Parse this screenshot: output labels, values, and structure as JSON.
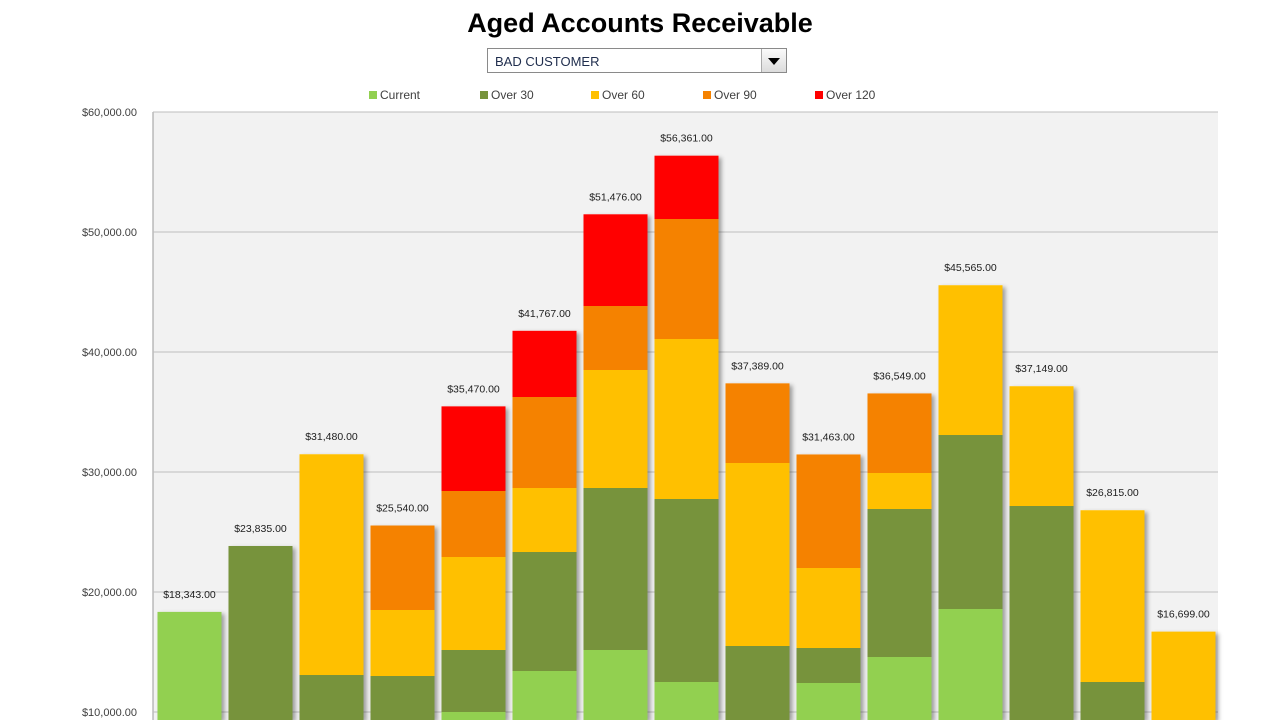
{
  "title": "Aged Accounts Receivable",
  "customer_select": {
    "value": "BAD CUSTOMER"
  },
  "chart_data": {
    "type": "bar",
    "stacked": true,
    "title": "Aged Accounts Receivable",
    "xlabel": "",
    "ylabel": "",
    "ylim": [
      0,
      60000
    ],
    "yticks": [
      "$10,000.00",
      "$20,000.00",
      "$30,000.00",
      "$40,000.00",
      "$50,000.00",
      "$60,000.00"
    ],
    "ytick_values": [
      10000,
      20000,
      30000,
      40000,
      50000,
      60000
    ],
    "grid": true,
    "legend_position": "top",
    "colors": {
      "Current": "#92d050",
      "Over 30": "#77933c",
      "Over 60": "#ffc000",
      "Over 90": "#f58200",
      "Over 120": "#ff0000"
    },
    "series": [
      {
        "name": "Current",
        "values": [
          18343,
          0,
          0,
          0,
          10000,
          13417,
          15167,
          12500,
          0,
          12417,
          14583,
          18583,
          0,
          0,
          0
        ]
      },
      {
        "name": "Over 30",
        "values": [
          0,
          23835,
          13083,
          13000,
          5167,
          9916,
          13500,
          15250,
          15500,
          2916,
          12334,
          14500,
          27167,
          12500,
          0
        ]
      },
      {
        "name": "Over 60",
        "values": [
          0,
          0,
          18397,
          5500,
          7750,
          5334,
          9833,
          13333,
          15250,
          6667,
          3000,
          12482,
          9982,
          14315,
          16699
        ]
      },
      {
        "name": "Over 90",
        "values": [
          0,
          0,
          0,
          7040,
          5500,
          7583,
          5333,
          10000,
          6639,
          9463,
          6632,
          0,
          0,
          0,
          0
        ]
      },
      {
        "name": "Over 120",
        "values": [
          0,
          0,
          0,
          0,
          7053,
          5517,
          7643,
          5278,
          0,
          0,
          0,
          0,
          0,
          0,
          0
        ]
      }
    ],
    "totals": [
      "$18,343.00",
      "$23,835.00",
      "$31,480.00",
      "$25,540.00",
      "$35,470.00",
      "$41,767.00",
      "$51,476.00",
      "$56,361.00",
      "$37,389.00",
      "$31,463.00",
      "$36,549.00",
      "$45,565.00",
      "$37,149.00",
      "$26,815.00",
      "$16,699.00"
    ],
    "total_values": [
      18343,
      23835,
      31480,
      25540,
      35470,
      41767,
      51476,
      56361,
      37389,
      31463,
      36549,
      45565,
      37149,
      26815,
      16699
    ]
  }
}
